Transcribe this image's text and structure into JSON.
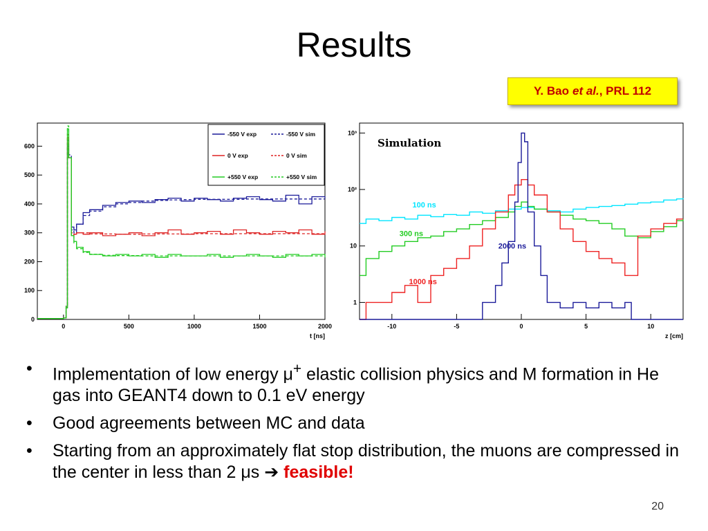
{
  "slide": {
    "title": "Results",
    "reference": {
      "author": "Y. Bao",
      "etal": "et al.",
      "journal": ", PRL 112"
    },
    "page_number": "20",
    "bullets": [
      {
        "pre": "Implementation of low energy μ",
        "sup": "+",
        "post": " elastic collision physics and M formation in He gas into GEANT4 down to 0.1 eV energy"
      },
      {
        "pre": "Good agreements between MC and data"
      },
      {
        "pre": "Starting from an approximately flat stop distribution, the muons are compressed in the center in less than 2 μs ",
        "arrow": "➔",
        "highlight": "feasible!"
      }
    ]
  },
  "chart_data": [
    {
      "type": "line",
      "xlabel": "t [ns]",
      "ylabel": "",
      "xlim": [
        -200,
        2000
      ],
      "ylim": [
        0,
        680
      ],
      "xticks": [
        0,
        500,
        1000,
        1500,
        2000
      ],
      "yticks": [
        0,
        100,
        200,
        300,
        400,
        500,
        600
      ],
      "legend_position": "top-right",
      "series": [
        {
          "name": "-550 V exp",
          "color": "#1a1a99",
          "dash": false,
          "x": [
            -200,
            0,
            20,
            30,
            40,
            60,
            80,
            100,
            150,
            200,
            300,
            400,
            500,
            600,
            700,
            800,
            900,
            1000,
            1100,
            1200,
            1300,
            1400,
            1500,
            1600,
            1700,
            1800,
            1900,
            2000
          ],
          "y": [
            3,
            5,
            40,
            600,
            560,
            320,
            310,
            330,
            370,
            380,
            395,
            405,
            410,
            405,
            415,
            420,
            410,
            420,
            415,
            410,
            420,
            425,
            415,
            410,
            430,
            400,
            425,
            420
          ]
        },
        {
          "name": "-550 V sim",
          "color": "#1a1a99",
          "dash": true,
          "x": [
            -200,
            0,
            20,
            30,
            40,
            60,
            80,
            100,
            150,
            200,
            300,
            400,
            500,
            600,
            700,
            800,
            900,
            1000,
            1200,
            1400,
            1600,
            1800,
            2000
          ],
          "y": [
            3,
            5,
            50,
            620,
            570,
            310,
            300,
            330,
            360,
            375,
            390,
            400,
            405,
            410,
            412,
            414,
            415,
            416,
            416,
            417,
            417,
            417,
            417
          ]
        },
        {
          "name": "0 V exp",
          "color": "#dd2222",
          "dash": false,
          "x": [
            -200,
            0,
            20,
            30,
            40,
            60,
            80,
            100,
            150,
            200,
            300,
            400,
            500,
            600,
            700,
            800,
            900,
            1000,
            1100,
            1200,
            1300,
            1400,
            1500,
            1600,
            1700,
            1800,
            1900,
            2000
          ],
          "y": [
            3,
            5,
            40,
            630,
            560,
            290,
            295,
            300,
            295,
            300,
            290,
            295,
            300,
            290,
            300,
            310,
            295,
            300,
            305,
            295,
            310,
            300,
            295,
            305,
            300,
            310,
            295,
            305
          ]
        },
        {
          "name": "0 V sim",
          "color": "#dd2222",
          "dash": true,
          "x": [
            -200,
            0,
            20,
            30,
            40,
            60,
            80,
            100,
            200,
            400,
            600,
            800,
            1000,
            1200,
            1400,
            1600,
            1800,
            2000
          ],
          "y": [
            3,
            5,
            50,
            640,
            560,
            300,
            295,
            300,
            296,
            295,
            296,
            296,
            297,
            297,
            297,
            297,
            297,
            297
          ]
        },
        {
          "name": "+550 V exp",
          "color": "#22cc22",
          "dash": false,
          "x": [
            -200,
            0,
            20,
            30,
            40,
            60,
            80,
            100,
            150,
            200,
            300,
            400,
            500,
            600,
            700,
            800,
            900,
            1000,
            1100,
            1200,
            1300,
            1400,
            1500,
            1600,
            1700,
            1800,
            1900,
            2000
          ],
          "y": [
            3,
            5,
            40,
            660,
            560,
            290,
            270,
            250,
            235,
            225,
            220,
            225,
            220,
            225,
            215,
            225,
            220,
            220,
            225,
            215,
            220,
            225,
            220,
            215,
            225,
            220,
            225,
            215
          ]
        },
        {
          "name": "+550 V sim",
          "color": "#22cc22",
          "dash": true,
          "x": [
            -200,
            0,
            20,
            30,
            40,
            60,
            80,
            100,
            150,
            200,
            300,
            400,
            600,
            800,
            1000,
            1200,
            1400,
            1600,
            1800,
            2000
          ],
          "y": [
            3,
            5,
            50,
            670,
            560,
            290,
            265,
            245,
            232,
            226,
            222,
            221,
            220,
            220,
            220,
            220,
            220,
            220,
            220,
            220
          ]
        }
      ]
    },
    {
      "type": "line",
      "title": "Simulation",
      "xlabel": "z [cm]",
      "ylabel": "",
      "xlim": [
        -12.5,
        12.5
      ],
      "ylim": [
        0.5,
        1500
      ],
      "y_scale": "log",
      "xticks": [
        -10,
        -5,
        0,
        5,
        10
      ],
      "yticks": [
        1,
        10,
        100,
        1000
      ],
      "ytick_labels": [
        "1",
        "10",
        "10²",
        "10³"
      ],
      "series": [
        {
          "name": "100 ns",
          "color": "#00e5ff",
          "x": [
            -12.5,
            -12,
            -11,
            -10,
            -9,
            -8,
            -7,
            -6,
            -5,
            -4,
            -3,
            -2,
            -1,
            0,
            1,
            2,
            3,
            4,
            5,
            6,
            7,
            8,
            9,
            10,
            11,
            12,
            12.5
          ],
          "y": [
            25,
            30,
            28,
            32,
            30,
            35,
            33,
            36,
            35,
            40,
            38,
            42,
            45,
            48,
            45,
            42,
            40,
            45,
            48,
            50,
            52,
            55,
            58,
            60,
            65,
            68,
            70
          ]
        },
        {
          "name": "300 ns",
          "color": "#22cc22",
          "x": [
            -12.5,
            -12,
            -11,
            -10,
            -9,
            -8,
            -7,
            -6,
            -5,
            -4,
            -3,
            -2,
            -1,
            -0.5,
            0,
            0.5,
            1,
            2,
            3,
            4,
            5,
            6,
            7,
            8,
            9,
            10,
            11,
            12,
            12.5
          ],
          "y": [
            3,
            6,
            8,
            10,
            12,
            14,
            15,
            18,
            20,
            24,
            28,
            32,
            40,
            50,
            60,
            50,
            45,
            40,
            35,
            30,
            28,
            25,
            20,
            15,
            14,
            18,
            22,
            28,
            30
          ]
        },
        {
          "name": "1000 ns",
          "color": "#ee2222",
          "x": [
            -12.5,
            -12,
            -11,
            -10,
            -9,
            -8,
            -7,
            -6,
            -5,
            -4,
            -3,
            -2,
            -1,
            -0.5,
            0,
            0.5,
            1,
            2,
            3,
            4,
            5,
            6,
            7,
            8,
            9,
            10,
            11,
            12,
            12.5
          ],
          "y": [
            0.5,
            1,
            1,
            1.5,
            2,
            1,
            3,
            4,
            6,
            10,
            20,
            40,
            80,
            120,
            150,
            120,
            80,
            40,
            20,
            12,
            8,
            6,
            5,
            3,
            15,
            20,
            25,
            30,
            30
          ]
        },
        {
          "name": "2000 ns",
          "color": "#1a1a99",
          "x": [
            -12.5,
            -3.5,
            -3,
            -2,
            -1.5,
            -1,
            -0.5,
            -0.25,
            0,
            0.25,
            0.5,
            1,
            1.5,
            2,
            3,
            4,
            5,
            6,
            7,
            8,
            8.5,
            12.5
          ],
          "y": [
            0.5,
            0.5,
            1,
            2,
            5,
            12,
            60,
            300,
            1000,
            700,
            40,
            10,
            3,
            1,
            0.8,
            1,
            0.8,
            1,
            0.8,
            1,
            0.5,
            0.5
          ]
        }
      ]
    }
  ]
}
